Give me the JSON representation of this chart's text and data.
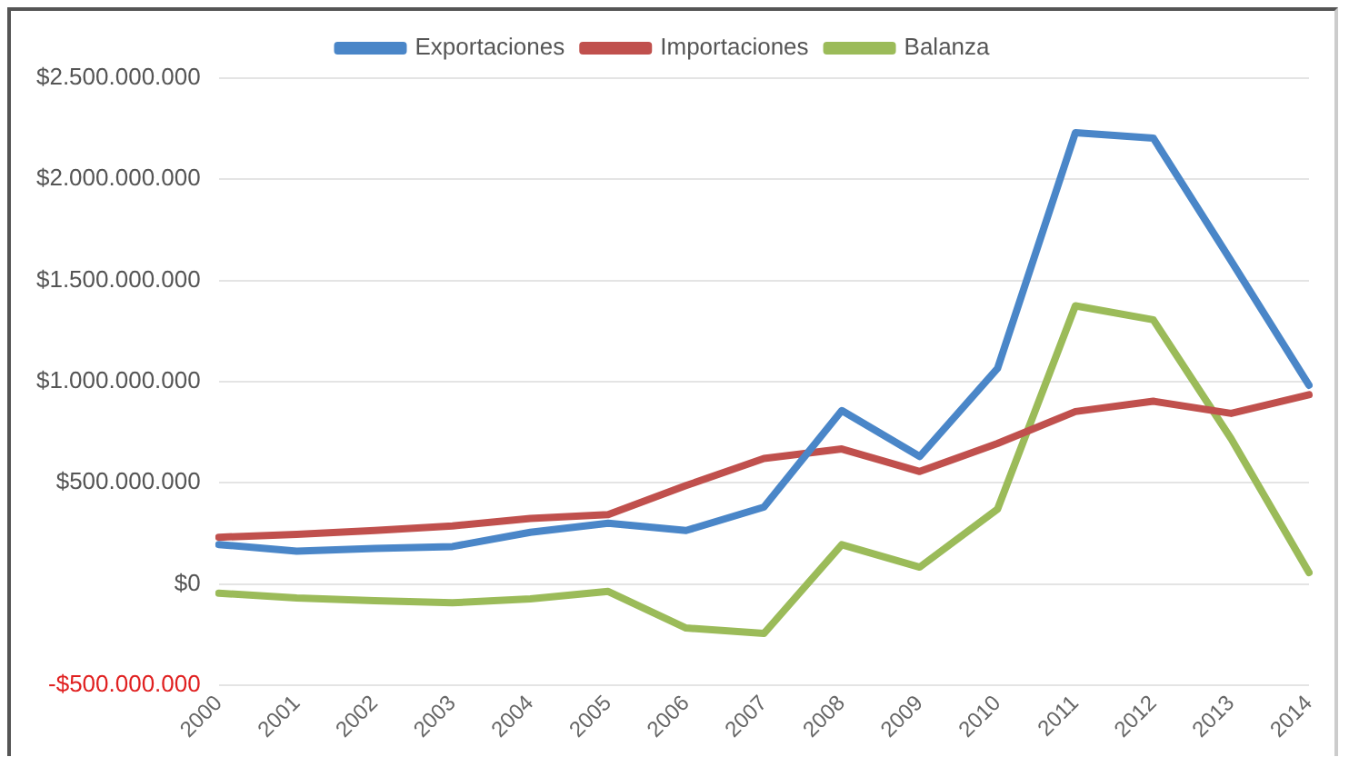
{
  "chart_data": {
    "type": "line",
    "categories": [
      "2000",
      "2001",
      "2002",
      "2003",
      "2004",
      "2005",
      "2006",
      "2007",
      "2008",
      "2009",
      "2010",
      "2011",
      "2012",
      "2013",
      "2014"
    ],
    "series": [
      {
        "name": "Exportaciones",
        "color": "#4a86c8",
        "values": [
          195000000,
          162000000,
          176000000,
          185000000,
          255000000,
          300000000,
          264000000,
          380000000,
          857000000,
          630000000,
          1065000000,
          2230000000,
          2204000000,
          1597000000,
          982000000
        ]
      },
      {
        "name": "Importaciones",
        "color": "#c0504d",
        "values": [
          231000000,
          245000000,
          264000000,
          287000000,
          324000000,
          343000000,
          486000000,
          620000000,
          667000000,
          556000000,
          694000000,
          852000000,
          903000000,
          843000000,
          935000000
        ]
      },
      {
        "name": "Balanza",
        "color": "#9bbb59",
        "values": [
          -46000000,
          -69000000,
          -83000000,
          -93000000,
          -74000000,
          -37000000,
          -218000000,
          -245000000,
          194000000,
          83000000,
          370000000,
          1375000000,
          1306000000,
          718000000,
          56000000
        ]
      }
    ],
    "ylim": [
      -500000000,
      2500000000
    ],
    "yticks": [
      {
        "value": -500000000,
        "label": "-$500.000.000"
      },
      {
        "value": 0,
        "label": "$0"
      },
      {
        "value": 500000000,
        "label": "$500.000.000"
      },
      {
        "value": 1000000000,
        "label": "$1.000.000.000"
      },
      {
        "value": 1500000000,
        "label": "$1.500.000.000"
      },
      {
        "value": 2000000000,
        "label": "$2.000.000.000"
      },
      {
        "value": 2500000000,
        "label": "$2.500.000.000"
      }
    ],
    "grid": "y",
    "legend": "top",
    "marker": "none",
    "line_style": "solid"
  }
}
